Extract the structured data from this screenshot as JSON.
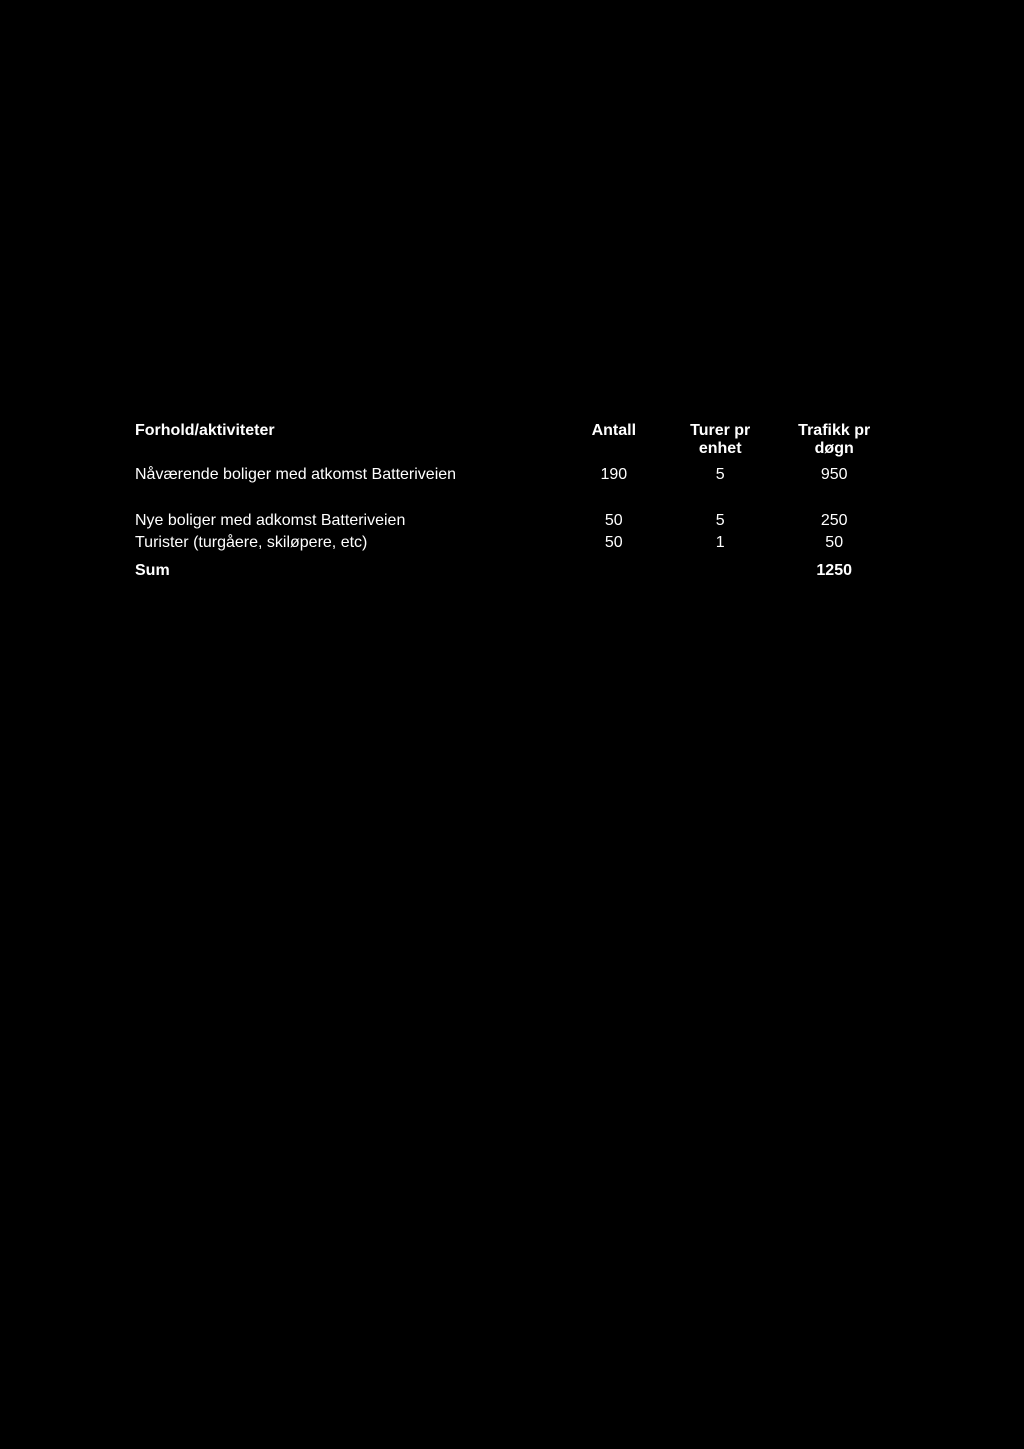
{
  "table": {
    "headers": {
      "col1": "Forhold/aktiviteter",
      "col2": "Antall",
      "col3_line1": "Turer pr",
      "col3_line2": "enhet",
      "col4_line1": "Trafikk pr",
      "col4_line2": "døgn"
    },
    "rows": [
      {
        "desc": "Nåværende boliger med atkomst Batteriveien",
        "antall": "190",
        "turer": "5",
        "trafikk": "950"
      },
      {
        "desc": "Nye boliger med adkomst Batteriveien",
        "antall": "50",
        "turer": "5",
        "trafikk": "250"
      },
      {
        "desc": "Turister (turgåere, skiløpere, etc)",
        "antall": "50",
        "turer": "1",
        "trafikk": "50"
      }
    ],
    "sum": {
      "label": "Sum",
      "value": "1250"
    },
    "styling": {
      "background_color": "#000000",
      "text_color": "#ffffff",
      "font_family": "Verdana",
      "header_fontsize": 16,
      "body_fontsize": 16,
      "header_fontweight": "bold",
      "body_fontweight": "normal",
      "sum_fontweight": "bold"
    }
  }
}
